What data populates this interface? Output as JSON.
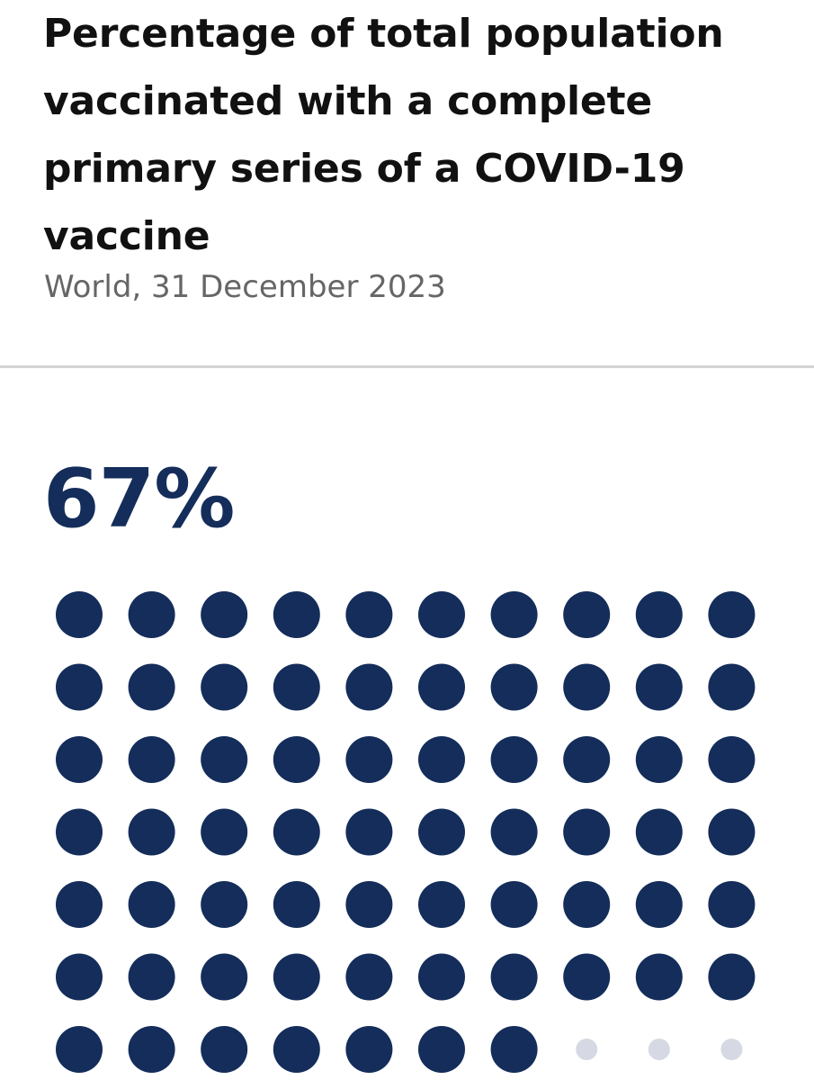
{
  "header": {
    "title": "Percentage of total population vaccinated with a complete primary series of a COVID-19 vaccine",
    "subtitle": "World, 31 December 2023"
  },
  "colors": {
    "filled": "#142d5a",
    "empty": "#d6d9e3",
    "title": "#111111",
    "subtitle": "#666666"
  },
  "chart_data": {
    "type": "dot-matrix",
    "value_label": "67%",
    "value": 67,
    "unit": "%",
    "filled_dots": 67,
    "columns": 10,
    "visible_rows": 7
  }
}
